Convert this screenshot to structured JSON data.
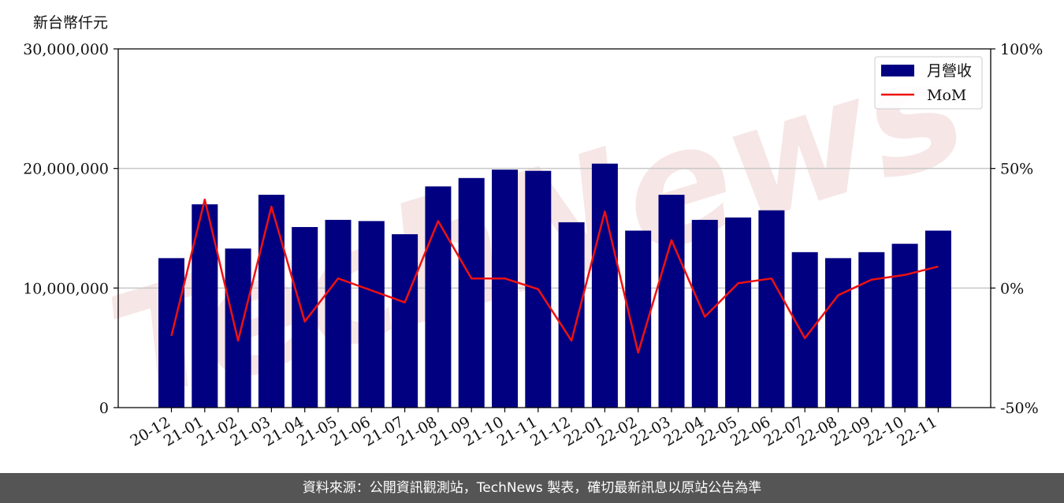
{
  "unit_label": "新台幣仟元",
  "footer_text": "資料來源：公開資訊觀測站，TechNews 製表，確切最新訊息以原站公告為準",
  "watermark_text": "TechNews",
  "colors": {
    "bar": "#000080",
    "line": "#ee1111",
    "grid": "#c8c8c8",
    "footer_bg": "#555555"
  },
  "chart_data": {
    "type": "bar",
    "categories": [
      "20-12",
      "21-01",
      "21-02",
      "21-03",
      "21-04",
      "21-05",
      "21-06",
      "21-07",
      "21-08",
      "21-09",
      "21-10",
      "21-11",
      "21-12",
      "22-01",
      "22-02",
      "22-03",
      "22-04",
      "22-05",
      "22-06",
      "22-07",
      "22-08",
      "22-09",
      "22-10",
      "22-11"
    ],
    "series": [
      {
        "name": "月營收",
        "type": "bar",
        "axis": "left",
        "values": [
          12500000,
          17000000,
          13300000,
          17800000,
          15100000,
          15700000,
          15600000,
          14500000,
          18500000,
          19200000,
          19900000,
          19800000,
          15500000,
          20400000,
          14800000,
          17800000,
          15700000,
          15900000,
          16500000,
          13000000,
          12500000,
          13000000,
          13700000,
          14800000
        ]
      },
      {
        "name": "MoM",
        "type": "line",
        "axis": "right",
        "values": [
          -20,
          37,
          -22,
          34,
          -14,
          4,
          -1,
          -6,
          28,
          4,
          4,
          -0.5,
          -22,
          32,
          -27,
          20,
          -12,
          2,
          4,
          -21,
          -3,
          3.5,
          5.5,
          9
        ]
      }
    ],
    "y_left": {
      "ylim": [
        0,
        30000000
      ],
      "ticks": [
        "0",
        "10,000,000",
        "20,000,000",
        "30,000,000"
      ],
      "tick_values": [
        0,
        10000000,
        20000000,
        30000000
      ]
    },
    "y_right": {
      "ylim": [
        -50,
        100
      ],
      "ticks": [
        "-50%",
        "0%",
        "50%",
        "100%"
      ],
      "tick_values": [
        -50,
        0,
        50,
        100
      ]
    },
    "grid": true,
    "legend": {
      "position": "top-right",
      "entries": [
        "月營收",
        "MoM"
      ]
    }
  }
}
